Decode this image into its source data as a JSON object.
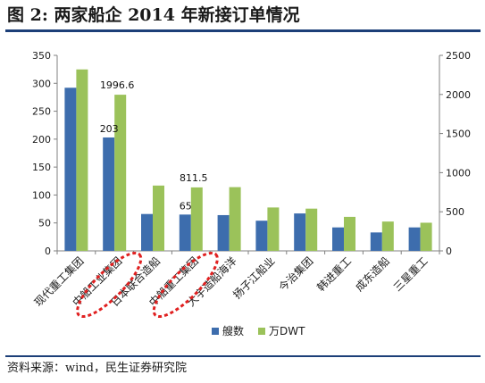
{
  "header": {
    "title": "图 2:    两家船企 2014 年新接订单情况"
  },
  "footer": {
    "source": "资料来源：wind，民生证券研究院"
  },
  "colors": {
    "series1": "#3d6dad",
    "series2": "#9bc25a",
    "rule": "#1c3f78",
    "highlight": "#e02020"
  },
  "chart_data": {
    "type": "bar",
    "categories": [
      "现代重工集团",
      "中船工业集团",
      "日本联合造船",
      "中船重工集团",
      "大宇造船海洋",
      "扬子江船业",
      "今治集团",
      "韩进重工",
      "成东造船",
      "三星重工"
    ],
    "series": [
      {
        "name": "艘数",
        "axis": "left",
        "values": [
          292,
          203,
          66,
          65,
          64,
          54,
          67,
          42,
          33,
          42
        ]
      },
      {
        "name": "万DWT",
        "axis": "right",
        "values": [
          2320,
          1996.6,
          835,
          811.5,
          815,
          555,
          540,
          435,
          375,
          360
        ]
      }
    ],
    "y_left": {
      "min": 0,
      "max": 350,
      "ticks": [
        "0",
        "50",
        "100",
        "150",
        "200",
        "250",
        "300",
        "350"
      ]
    },
    "y_right": {
      "min": 0,
      "max": 2500,
      "ticks": [
        "0",
        "500",
        "1000",
        "1500",
        "2000",
        "2500"
      ]
    },
    "data_labels": [
      {
        "category": "中船工业集团",
        "series": "万DWT",
        "text": "1996.6"
      },
      {
        "category": "中船工业集团",
        "series": "艘数",
        "text": "203"
      },
      {
        "category": "中船重工集团",
        "series": "万DWT",
        "text": "811.5"
      },
      {
        "category": "中船重工集团",
        "series": "艘数",
        "text": "65"
      }
    ],
    "highlighted_categories": [
      "中船工业集团",
      "中船重工集团"
    ],
    "legend_position": "bottom",
    "grid": false
  }
}
